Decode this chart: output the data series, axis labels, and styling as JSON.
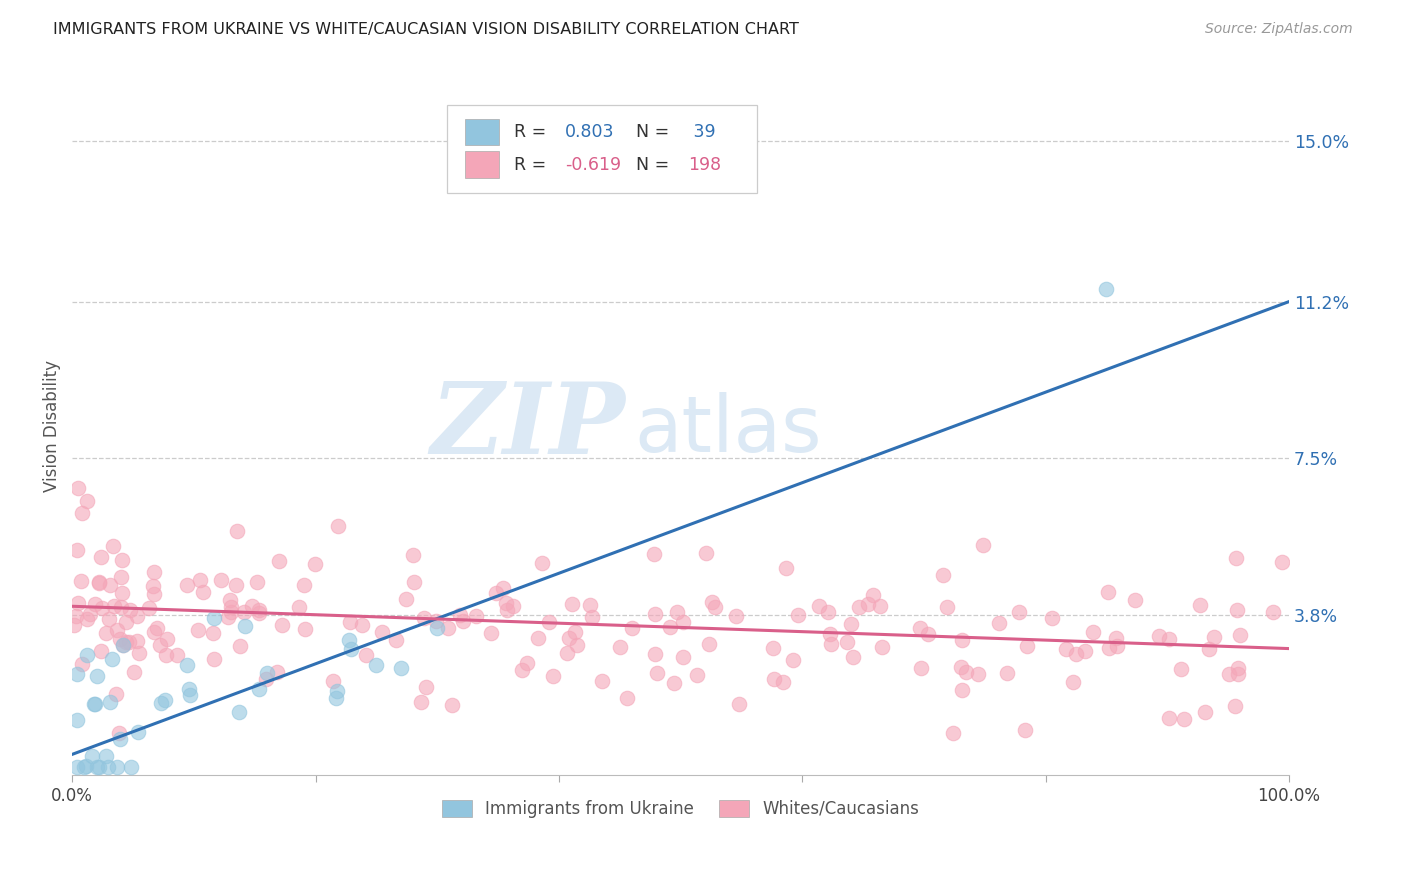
{
  "title": "IMMIGRANTS FROM UKRAINE VS WHITE/CAUCASIAN VISION DISABILITY CORRELATION CHART",
  "source": "Source: ZipAtlas.com",
  "ylabel": "Vision Disability",
  "xlim": [
    0.0,
    1.0
  ],
  "ylim": [
    0.0,
    0.165
  ],
  "yticks": [
    0.038,
    0.075,
    0.112,
    0.15
  ],
  "ytick_labels": [
    "3.8%",
    "7.5%",
    "11.2%",
    "15.0%"
  ],
  "xticks": [
    0.0,
    0.2,
    0.4,
    0.6,
    0.8,
    1.0
  ],
  "xtick_labels": [
    "0.0%",
    "",
    "",
    "",
    "",
    "100.0%"
  ],
  "blue_R": 0.803,
  "blue_N": 39,
  "pink_R": -0.619,
  "pink_N": 198,
  "blue_color": "#92c5de",
  "pink_color": "#f4a6b8",
  "blue_line_color": "#3070b3",
  "pink_line_color": "#d95f8a",
  "legend_label_blue": "Immigrants from Ukraine",
  "legend_label_pink": "Whites/Caucasians",
  "watermark_zip": "ZIP",
  "watermark_atlas": "atlas",
  "watermark_color": "#dce9f5",
  "background_color": "#ffffff",
  "grid_color": "#cccccc",
  "blue_line_start_y": 0.005,
  "blue_line_end_y": 0.112,
  "pink_line_start_y": 0.04,
  "pink_line_end_y": 0.03
}
